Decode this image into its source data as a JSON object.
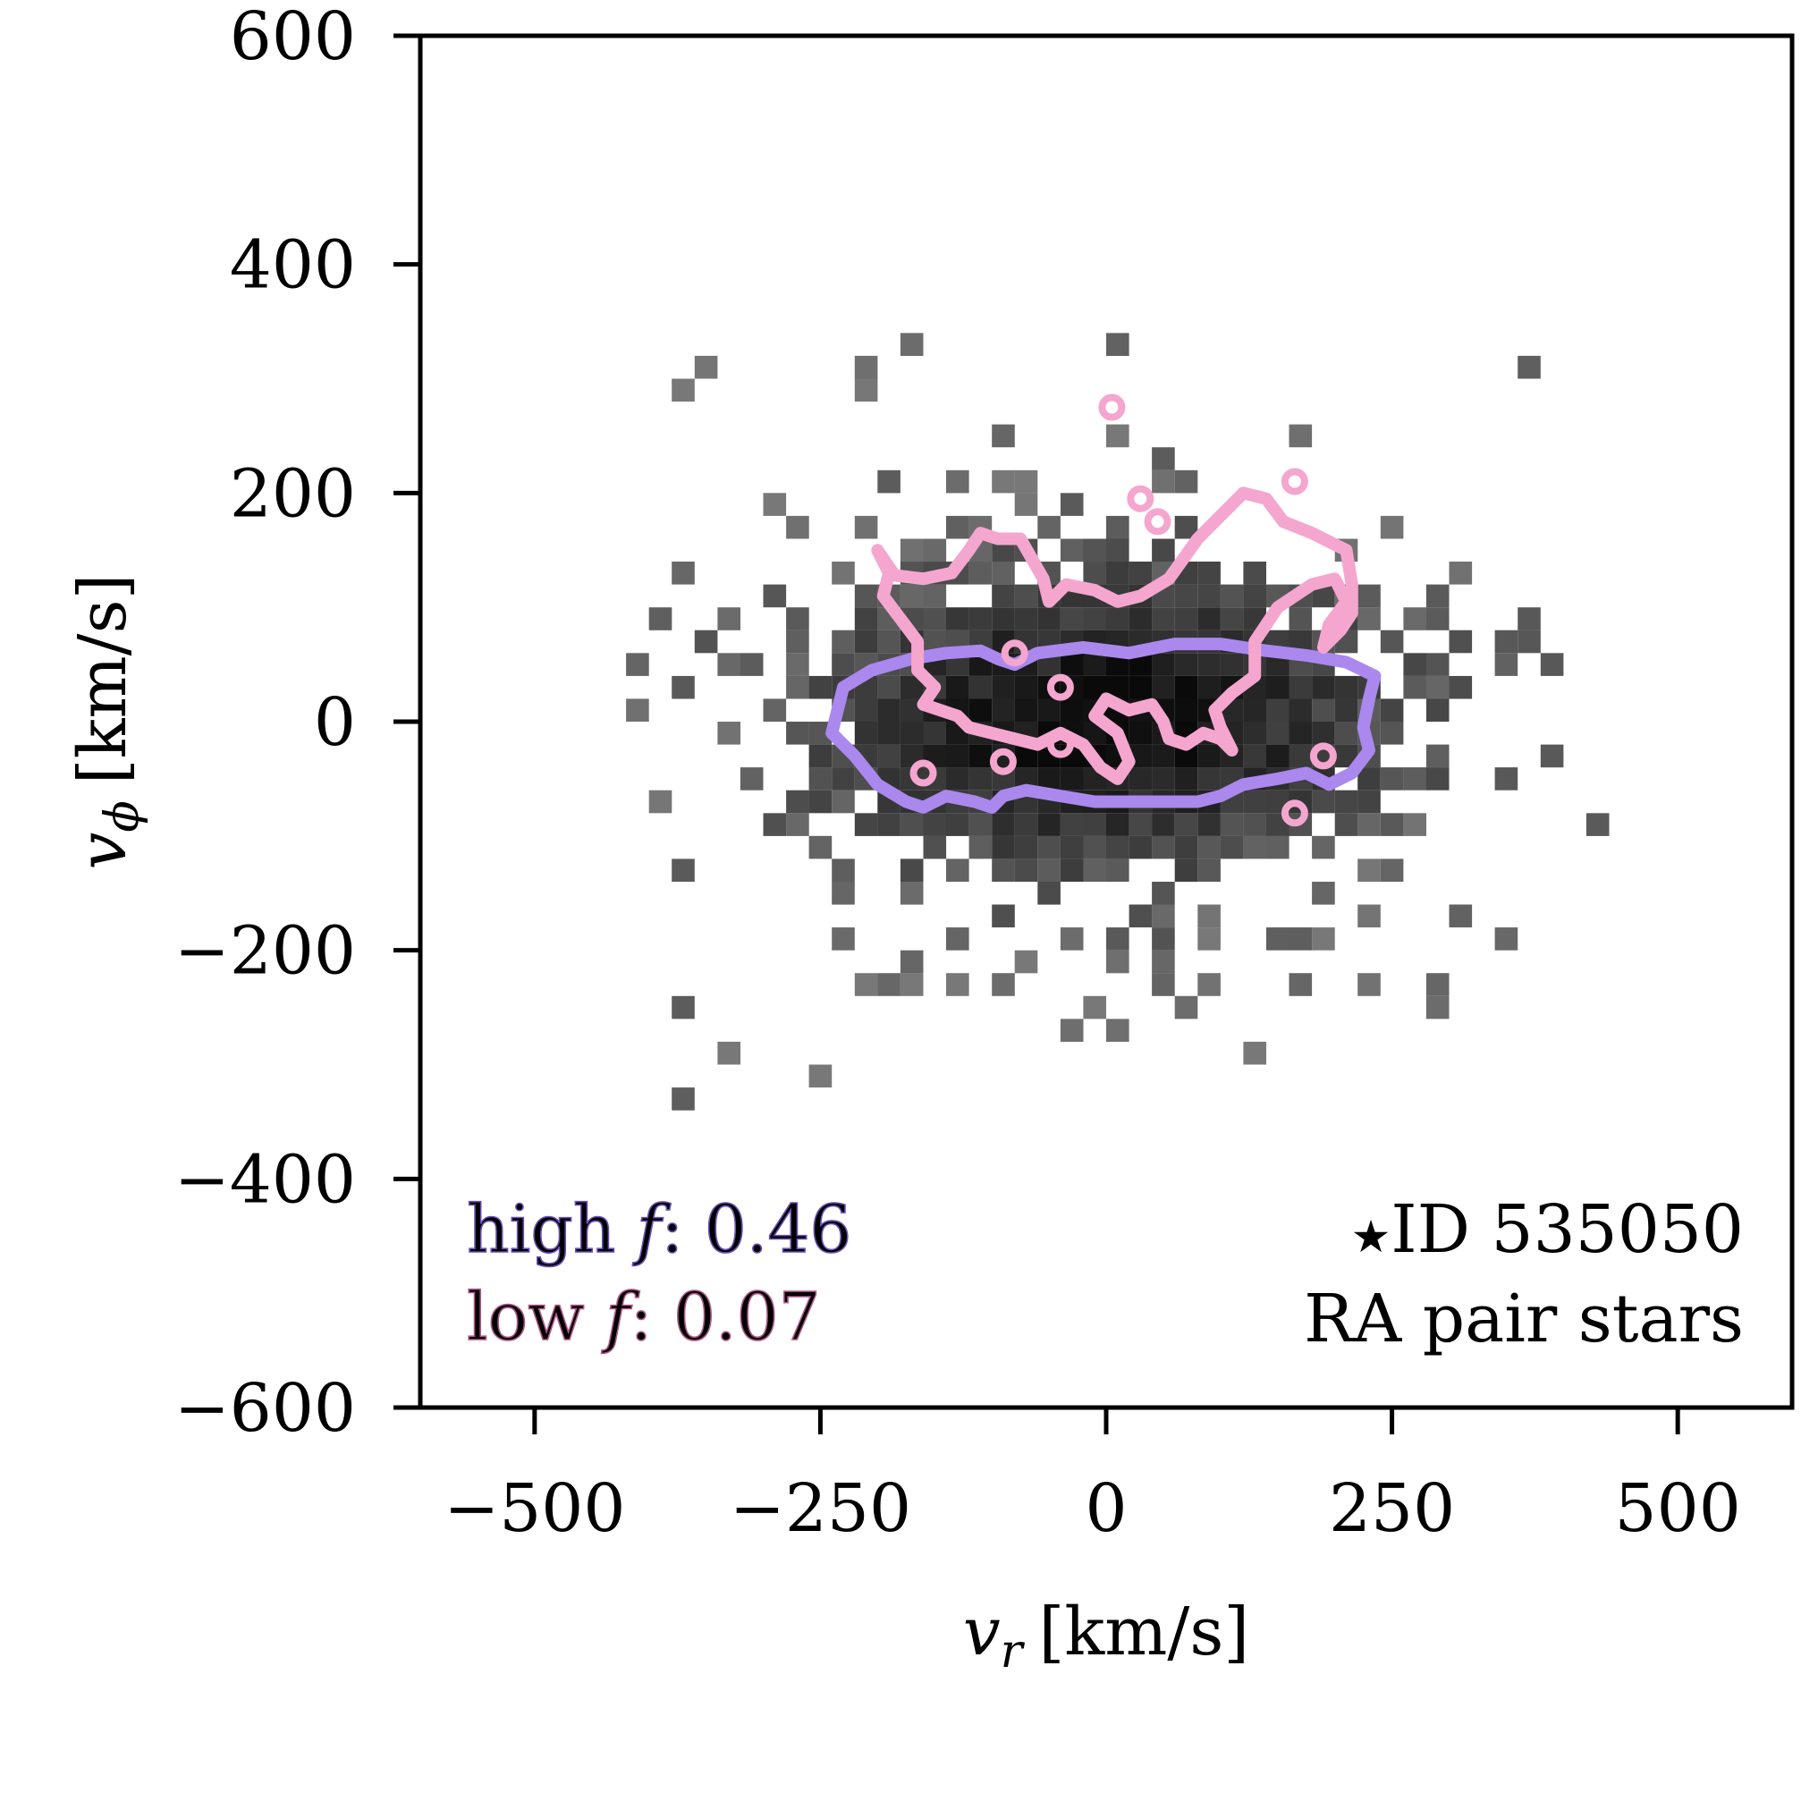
{
  "chart_data": {
    "type": "heatmap",
    "title": "",
    "x_axis": {
      "variable": "v",
      "subscript": "r",
      "unit": "[km/s]",
      "range": [
        -600,
        600
      ],
      "ticks": [
        -500,
        -250,
        0,
        250,
        500
      ],
      "tick_labels": [
        "−500",
        "−250",
        "0",
        "250",
        "500"
      ]
    },
    "y_axis": {
      "variable": "v",
      "subscript": "ϕ",
      "unit": "[km/s]",
      "range": [
        -600,
        600
      ],
      "ticks": [
        -600,
        -400,
        -200,
        0,
        200,
        400,
        600
      ],
      "tick_labels": [
        "−600",
        "−400",
        "−200",
        "0",
        "200",
        "400",
        "600"
      ]
    },
    "grid": false,
    "histogram": {
      "description": "2D histogram of star velocities, grayscale (darker = more stars)",
      "bin_size": 20,
      "core_x_range": [
        -250,
        250
      ],
      "core_y_range": [
        -100,
        100
      ],
      "extent_x": [
        -420,
        440
      ],
      "extent_y": [
        -380,
        400
      ],
      "colormap": "Greys"
    },
    "contours": [
      {
        "name": "high f",
        "color": "#aa88ee",
        "points": [
          [
            -235,
            10
          ],
          [
            -230,
            30
          ],
          [
            -205,
            45
          ],
          [
            -170,
            55
          ],
          [
            -140,
            60
          ],
          [
            -110,
            62
          ],
          [
            -95,
            55
          ],
          [
            -80,
            50
          ],
          [
            -60,
            60
          ],
          [
            -20,
            65
          ],
          [
            20,
            60
          ],
          [
            60,
            68
          ],
          [
            100,
            68
          ],
          [
            140,
            62
          ],
          [
            175,
            58
          ],
          [
            210,
            52
          ],
          [
            235,
            40
          ],
          [
            230,
            20
          ],
          [
            225,
            -5
          ],
          [
            230,
            -25
          ],
          [
            215,
            -45
          ],
          [
            195,
            -55
          ],
          [
            175,
            -45
          ],
          [
            150,
            -50
          ],
          [
            120,
            -55
          ],
          [
            100,
            -65
          ],
          [
            80,
            -70
          ],
          [
            50,
            -70
          ],
          [
            20,
            -70
          ],
          [
            -10,
            -70
          ],
          [
            -40,
            -65
          ],
          [
            -70,
            -60
          ],
          [
            -90,
            -65
          ],
          [
            -100,
            -75
          ],
          [
            -115,
            -70
          ],
          [
            -140,
            -65
          ],
          [
            -160,
            -75
          ],
          [
            -175,
            -70
          ],
          [
            -200,
            -55
          ],
          [
            -220,
            -30
          ],
          [
            -240,
            -10
          ],
          [
            -235,
            10
          ]
        ],
        "label_value": "0.46"
      },
      {
        "name": "low f",
        "color": "#f4a6cf",
        "points": [
          [
            -200,
            150
          ],
          [
            -190,
            130
          ],
          [
            -195,
            110
          ],
          [
            -180,
            90
          ],
          [
            -165,
            70
          ],
          [
            -165,
            45
          ],
          [
            -150,
            30
          ],
          [
            -160,
            15
          ],
          [
            -130,
            5
          ],
          [
            -120,
            -5
          ],
          [
            -100,
            -10
          ],
          [
            -80,
            -15
          ],
          [
            -60,
            -20
          ],
          [
            -40,
            -10
          ],
          [
            -20,
            -20
          ],
          [
            -5,
            -40
          ],
          [
            10,
            -50
          ],
          [
            20,
            -35
          ],
          [
            10,
            -10
          ],
          [
            -10,
            5
          ],
          [
            0,
            20
          ],
          [
            20,
            10
          ],
          [
            40,
            15
          ],
          [
            50,
            0
          ],
          [
            55,
            -15
          ],
          [
            70,
            -20
          ],
          [
            85,
            -10
          ],
          [
            100,
            -15
          ],
          [
            110,
            -25
          ],
          [
            100,
            -5
          ],
          [
            95,
            10
          ],
          [
            110,
            25
          ],
          [
            130,
            40
          ],
          [
            130,
            70
          ],
          [
            150,
            100
          ],
          [
            180,
            120
          ],
          [
            200,
            125
          ],
          [
            210,
            105
          ],
          [
            195,
            85
          ],
          [
            190,
            65
          ],
          [
            205,
            80
          ],
          [
            215,
            95
          ],
          [
            215,
            120
          ],
          [
            210,
            150
          ],
          [
            180,
            165
          ],
          [
            155,
            175
          ],
          [
            140,
            195
          ],
          [
            120,
            200
          ],
          [
            95,
            175
          ],
          [
            80,
            160
          ],
          [
            55,
            125
          ],
          [
            30,
            110
          ],
          [
            10,
            105
          ],
          [
            -10,
            115
          ],
          [
            -35,
            120
          ],
          [
            -50,
            105
          ],
          [
            -55,
            125
          ],
          [
            -75,
            160
          ],
          [
            -95,
            160
          ],
          [
            -110,
            165
          ],
          [
            -120,
            150
          ],
          [
            -135,
            130
          ],
          [
            -160,
            125
          ],
          [
            -185,
            128
          ],
          [
            -200,
            150
          ]
        ],
        "islands": [
          [
            -160,
            -45
          ],
          [
            -80,
            60
          ],
          [
            -40,
            30
          ],
          [
            -90,
            -35
          ],
          [
            -40,
            -20
          ],
          [
            5,
            275
          ],
          [
            30,
            195
          ],
          [
            45,
            175
          ],
          [
            165,
            210
          ],
          [
            165,
            -80
          ],
          [
            190,
            -30
          ]
        ],
        "label_value": "0.07"
      }
    ],
    "legend": {
      "placement": "lower-left",
      "entries": [
        {
          "prefix": "high ",
          "symbol": "f",
          "value": ": 0.46",
          "color": "#aa88ee"
        },
        {
          "prefix": "low ",
          "symbol": "f",
          "value": ": 0.07",
          "color": "#f4a6cf"
        }
      ]
    },
    "annotations": {
      "placement": "lower-right",
      "star_symbol": "★",
      "line1": "ID 535050",
      "line2": "RA pair stars"
    }
  }
}
